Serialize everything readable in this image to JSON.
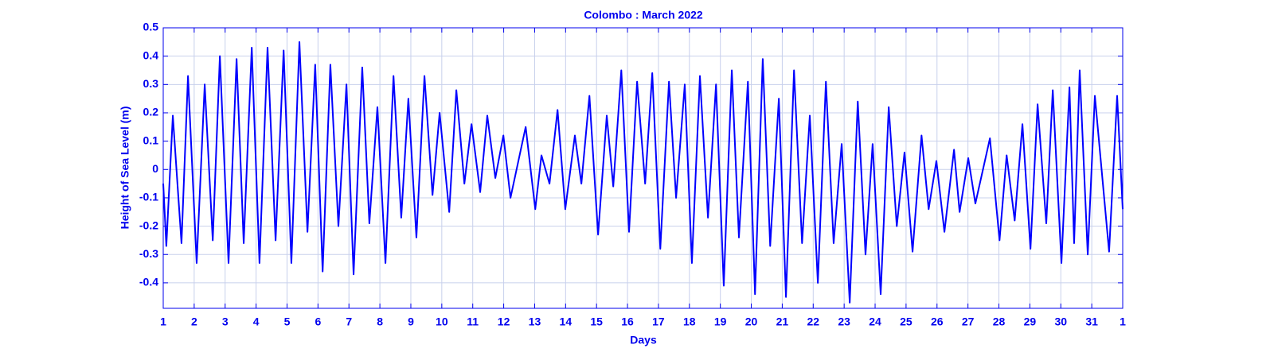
{
  "chart_data": {
    "type": "line",
    "title": "Colombo  : March 2022",
    "x_label": "Days",
    "y_label": "Height of Sea Level (m)",
    "color": "#0000ff",
    "grid": true,
    "xlim": [
      1,
      32
    ],
    "xticks": [
      1,
      2,
      3,
      4,
      5,
      6,
      7,
      8,
      9,
      10,
      11,
      12,
      13,
      14,
      15,
      16,
      17,
      18,
      19,
      20,
      21,
      22,
      23,
      24,
      25,
      26,
      27,
      28,
      29,
      30,
      31,
      {
        "value": 32,
        "label": "1"
      }
    ],
    "ylim": [
      -0.49,
      0.5
    ],
    "yticks": [
      -0.4,
      -0.3,
      -0.2,
      -0.1,
      0,
      0.1,
      0.2,
      0.3,
      0.4,
      0.5
    ],
    "x": [
      1.0,
      1.1,
      1.31,
      1.59,
      1.8,
      2.08,
      2.34,
      2.6,
      2.83,
      3.11,
      3.37,
      3.6,
      3.86,
      4.11,
      4.37,
      4.63,
      4.89,
      5.14,
      5.4,
      5.66,
      5.91,
      6.15,
      6.4,
      6.66,
      6.92,
      7.15,
      7.43,
      7.66,
      7.92,
      8.18,
      8.44,
      8.69,
      8.92,
      9.18,
      9.44,
      9.7,
      9.93,
      10.24,
      10.47,
      10.73,
      10.96,
      11.24,
      11.47,
      11.73,
      11.99,
      12.22,
      12.71,
      13.02,
      13.22,
      13.48,
      13.74,
      13.99,
      14.3,
      14.51,
      14.77,
      15.05,
      15.33,
      15.54,
      15.8,
      16.05,
      16.31,
      16.57,
      16.8,
      17.06,
      17.34,
      17.57,
      17.85,
      18.08,
      18.34,
      18.6,
      18.86,
      19.11,
      19.37,
      19.6,
      19.89,
      20.12,
      20.37,
      20.61,
      20.89,
      21.12,
      21.38,
      21.64,
      21.89,
      22.15,
      22.41,
      22.66,
      22.92,
      23.18,
      23.44,
      23.69,
      23.92,
      24.18,
      24.44,
      24.7,
      24.95,
      25.21,
      25.5,
      25.73,
      25.98,
      26.24,
      26.55,
      26.73,
      27.01,
      27.24,
      27.71,
      28.02,
      28.25,
      28.51,
      28.76,
      29.02,
      29.25,
      29.53,
      29.74,
      30.02,
      30.28,
      30.43,
      30.61,
      30.87,
      31.1,
      31.56,
      31.82,
      32.0
    ],
    "values": [
      -0.05,
      -0.27,
      0.19,
      -0.26,
      0.33,
      -0.33,
      0.3,
      -0.25,
      0.4,
      -0.33,
      0.39,
      -0.26,
      0.43,
      -0.33,
      0.43,
      -0.25,
      0.42,
      -0.33,
      0.45,
      -0.22,
      0.37,
      -0.36,
      0.37,
      -0.2,
      0.3,
      -0.37,
      0.36,
      -0.19,
      0.22,
      -0.33,
      0.33,
      -0.17,
      0.25,
      -0.24,
      0.33,
      -0.09,
      0.2,
      -0.15,
      0.28,
      -0.05,
      0.16,
      -0.08,
      0.19,
      -0.03,
      0.12,
      -0.1,
      0.15,
      -0.14,
      0.05,
      -0.05,
      0.21,
      -0.14,
      0.12,
      -0.05,
      0.26,
      -0.23,
      0.19,
      -0.06,
      0.35,
      -0.22,
      0.31,
      -0.05,
      0.34,
      -0.28,
      0.31,
      -0.1,
      0.3,
      -0.33,
      0.33,
      -0.17,
      0.3,
      -0.41,
      0.35,
      -0.24,
      0.31,
      -0.44,
      0.39,
      -0.27,
      0.25,
      -0.45,
      0.35,
      -0.26,
      0.19,
      -0.4,
      0.31,
      -0.26,
      0.09,
      -0.47,
      0.24,
      -0.3,
      0.09,
      -0.44,
      0.22,
      -0.2,
      0.06,
      -0.29,
      0.12,
      -0.14,
      0.03,
      -0.22,
      0.07,
      -0.15,
      0.04,
      -0.12,
      0.11,
      -0.25,
      0.05,
      -0.18,
      0.16,
      -0.28,
      0.23,
      -0.19,
      0.28,
      -0.33,
      0.29,
      -0.26,
      0.35,
      -0.3,
      0.26,
      -0.29,
      0.26,
      -0.14
    ]
  }
}
